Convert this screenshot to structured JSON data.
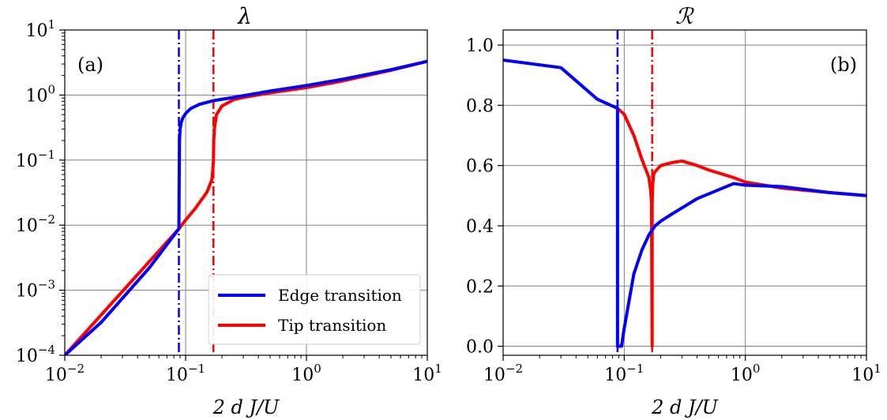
{
  "chart_data": [
    {
      "type": "line",
      "title": "λ",
      "panel_tag": "(a)",
      "xlabel": "2 d J/U",
      "ylabel": "",
      "xscale": "log",
      "yscale": "log",
      "xlim": [
        0.01,
        10
      ],
      "ylim": [
        0.0001,
        10
      ],
      "xticks": [
        {
          "value": 0.01,
          "base": "10",
          "exp": "−2"
        },
        {
          "value": 0.1,
          "base": "10",
          "exp": "−1"
        },
        {
          "value": 1,
          "base": "10",
          "exp": "0"
        },
        {
          "value": 10,
          "base": "10",
          "exp": "1"
        }
      ],
      "yticks": [
        {
          "value": 0.0001,
          "base": "10",
          "exp": "−4"
        },
        {
          "value": 0.001,
          "base": "10",
          "exp": "−3"
        },
        {
          "value": 0.01,
          "base": "10",
          "exp": "−2"
        },
        {
          "value": 0.1,
          "base": "10",
          "exp": "−1"
        },
        {
          "value": 1,
          "base": "10",
          "exp": "0"
        },
        {
          "value": 10,
          "base": "10",
          "exp": "1"
        }
      ],
      "grid": true,
      "legend": {
        "placement": "lower-right"
      },
      "vlines": [
        {
          "x": 0.088,
          "color": "#0000ff",
          "style": "dashdot"
        },
        {
          "x": 0.17,
          "color": "#ff0000",
          "style": "dashdot"
        }
      ],
      "series": [
        {
          "name": "Tip transition",
          "color": "#ff0000",
          "x": [
            0.01,
            0.088,
            0.1,
            0.12,
            0.15,
            0.165,
            0.168,
            0.17,
            0.171,
            0.173,
            0.18,
            0.2,
            0.25,
            0.3,
            0.5,
            1,
            2,
            5,
            10
          ],
          "y": [
            0.0001,
            0.0088,
            0.012,
            0.018,
            0.032,
            0.05,
            0.07,
            0.1,
            0.2,
            0.3,
            0.5,
            0.68,
            0.85,
            0.92,
            1.08,
            1.3,
            1.65,
            2.4,
            3.3
          ]
        },
        {
          "name": "Edge transition",
          "color": "#0000ff",
          "x": [
            0.01,
            0.02,
            0.05,
            0.088,
            0.0885,
            0.089,
            0.09,
            0.092,
            0.095,
            0.1,
            0.11,
            0.13,
            0.17,
            0.25,
            0.5,
            1,
            2,
            5,
            10
          ],
          "y": [
            0.0001,
            0.00032,
            0.0022,
            0.0088,
            0.05,
            0.2,
            0.3,
            0.38,
            0.45,
            0.52,
            0.62,
            0.72,
            0.82,
            0.92,
            1.15,
            1.4,
            1.75,
            2.45,
            3.3
          ]
        }
      ]
    },
    {
      "type": "line",
      "title": "ℛ",
      "panel_tag": "(b)",
      "xlabel": "2 d J/U",
      "ylabel": "",
      "xscale": "log",
      "yscale": "linear",
      "xlim": [
        0.01,
        10
      ],
      "ylim": [
        -0.03,
        1.05
      ],
      "xticks": [
        {
          "value": 0.01,
          "base": "10",
          "exp": "−2"
        },
        {
          "value": 0.1,
          "base": "10",
          "exp": "−1"
        },
        {
          "value": 1,
          "base": "10",
          "exp": "0"
        },
        {
          "value": 10,
          "base": "10",
          "exp": "1"
        }
      ],
      "yticks": [
        {
          "value": 0.0,
          "label": "0.0"
        },
        {
          "value": 0.2,
          "label": "0.2"
        },
        {
          "value": 0.4,
          "label": "0.4"
        },
        {
          "value": 0.6,
          "label": "0.6"
        },
        {
          "value": 0.8,
          "label": "0.8"
        },
        {
          "value": 1.0,
          "label": "1.0"
        }
      ],
      "grid": true,
      "vlines": [
        {
          "x": 0.088,
          "color": "#0000ff",
          "style": "dashdot"
        },
        {
          "x": 0.17,
          "color": "#ff0000",
          "style": "dashdot"
        }
      ],
      "series": [
        {
          "name": "Tip transition",
          "color": "#ff0000",
          "x": [
            0.088,
            0.1,
            0.12,
            0.14,
            0.16,
            0.165,
            0.168,
            0.17,
            0.17,
            0.172,
            0.175,
            0.18,
            0.2,
            0.25,
            0.3,
            0.4,
            0.5,
            0.8,
            1,
            2,
            5,
            10
          ],
          "y": [
            0.79,
            0.77,
            0.7,
            0.62,
            0.56,
            0.52,
            0.48,
            0.0,
            0.47,
            0.54,
            0.57,
            0.58,
            0.6,
            0.61,
            0.615,
            0.6,
            0.585,
            0.56,
            0.545,
            0.525,
            0.51,
            0.5
          ]
        },
        {
          "name": "Edge transition",
          "color": "#0000ff",
          "x": [
            0.01,
            0.03,
            0.06,
            0.088,
            0.088,
            0.095,
            0.1,
            0.12,
            0.14,
            0.16,
            0.18,
            0.2,
            0.25,
            0.4,
            0.8,
            1,
            2,
            5,
            10
          ],
          "y": [
            0.95,
            0.925,
            0.82,
            0.79,
            0.0,
            0.0,
            0.06,
            0.24,
            0.32,
            0.37,
            0.4,
            0.415,
            0.44,
            0.49,
            0.54,
            0.535,
            0.53,
            0.51,
            0.5
          ]
        }
      ]
    }
  ]
}
